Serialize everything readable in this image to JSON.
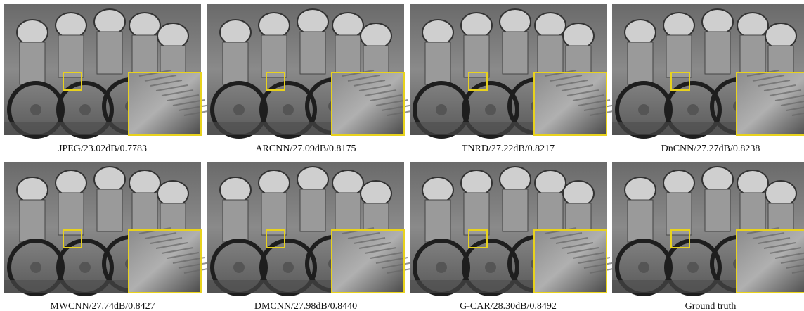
{
  "figure": {
    "panels": [
      {
        "caption": "JPEG/23.02dB/0.7783"
      },
      {
        "caption": "ARCNN/27.09dB/0.8175"
      },
      {
        "caption": "TNRD/27.22dB/0.8217"
      },
      {
        "caption": "DnCNN/27.27dB/0.8238"
      },
      {
        "caption": "MWCNN/27.74dB/0.8427"
      },
      {
        "caption": "DMCNN/27.98dB/0.8440"
      },
      {
        "caption": "G-CAR/28.30dB/0.8492"
      },
      {
        "caption": "Ground truth"
      }
    ]
  }
}
